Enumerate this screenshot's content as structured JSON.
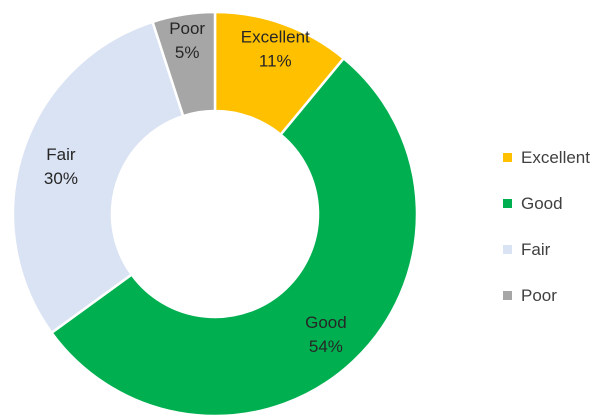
{
  "chart_data": {
    "type": "pie",
    "donut": true,
    "title": "",
    "categories": [
      "Excellent",
      "Good",
      "Fair",
      "Poor"
    ],
    "values": [
      11,
      54,
      30,
      5
    ],
    "value_labels": [
      "11%",
      "54%",
      "30%",
      "5%"
    ],
    "colors": [
      "#FFC000",
      "#00B050",
      "#DAE3F3",
      "#A6A6A6"
    ],
    "legend": {
      "position": "right",
      "items": [
        {
          "label": "Excellent",
          "color": "#FFC000"
        },
        {
          "label": "Good",
          "color": "#00B050"
        },
        {
          "label": "Fair",
          "color": "#DAE3F3"
        },
        {
          "label": "Poor",
          "color": "#A6A6A6"
        }
      ]
    }
  }
}
